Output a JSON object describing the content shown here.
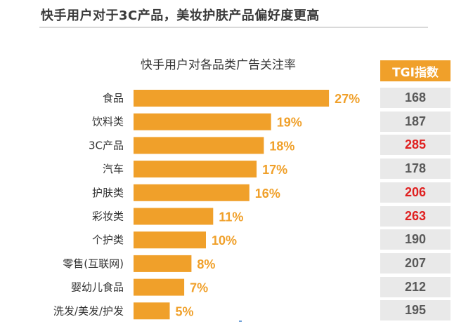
{
  "headline": "快手用户对于3C产品，美妆护肤产品偏好度更高",
  "colors": {
    "bar": "#f0a02a",
    "tgi_header_bg": "#f0a02a",
    "tgi_normal": "#595959",
    "tgi_highlight": "#e02020",
    "tgi_cell_bg": "#e9e9e9"
  },
  "chart_data": {
    "type": "bar",
    "orientation": "horizontal",
    "title": "快手用户对各品类广告关注率",
    "categories": [
      "食品",
      "饮料类",
      "3C产品",
      "汽车",
      "护肤类",
      "彩妆类",
      "个护类",
      "零售(互联网)",
      "婴幼儿食品",
      "洗发/美发/护发"
    ],
    "values": [
      27,
      19,
      18,
      17,
      16,
      11,
      10,
      8,
      7,
      5
    ],
    "value_labels": [
      "27%",
      "19%",
      "18%",
      "17%",
      "16%",
      "11%",
      "10%",
      "8%",
      "7%",
      "5%"
    ],
    "unit": "%",
    "grid": false,
    "legend": "none"
  },
  "tgi": {
    "header": "TGI指数",
    "values": [
      168,
      187,
      285,
      178,
      206,
      263,
      190,
      207,
      212,
      195
    ],
    "highlight": [
      false,
      false,
      true,
      false,
      true,
      true,
      false,
      false,
      false,
      false
    ]
  }
}
